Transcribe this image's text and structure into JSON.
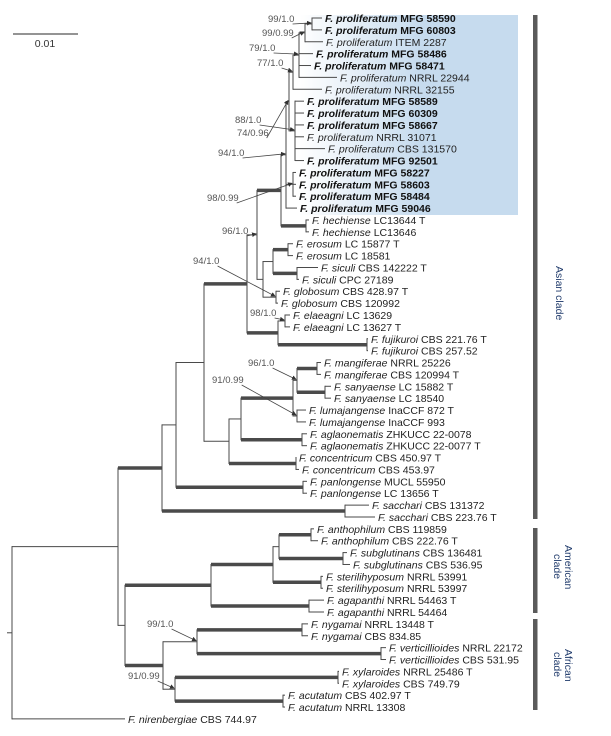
{
  "scale_bar": {
    "label": "0.01"
  },
  "colors": {
    "highlight_start": "#ffffff",
    "highlight_end": "#c6dbee",
    "branch": "#4a4a4a",
    "clade_bar": "#5a5a5a",
    "clade_text": "#1f3a6b"
  },
  "tips": [
    {
      "species": "F. proliferatum",
      "strain": "MFG 58590",
      "bold": true
    },
    {
      "species": "F. proliferatum",
      "strain": "MFG 60803",
      "bold": true
    },
    {
      "species": "F. proliferatum",
      "strain": "ITEM 2287",
      "bold": false
    },
    {
      "species": "F. proliferatum",
      "strain": "MFG 58486",
      "bold": true
    },
    {
      "species": "F. proliferatum",
      "strain": "MFG 58471",
      "bold": true
    },
    {
      "species": "F. proliferatum",
      "strain": "NRRL 22944",
      "bold": false
    },
    {
      "species": "F. proliferatum",
      "strain": "NRRL 32155",
      "bold": false
    },
    {
      "species": "F. proliferatum",
      "strain": "MFG 58589",
      "bold": true
    },
    {
      "species": "F. proliferatum",
      "strain": "MFG 60309",
      "bold": true
    },
    {
      "species": "F. proliferatum",
      "strain": "MFG 58667",
      "bold": true
    },
    {
      "species": "F. proliferatum",
      "strain": "NRRL 31071",
      "bold": false
    },
    {
      "species": "F. proliferatum",
      "strain": "CBS 131570",
      "bold": false
    },
    {
      "species": "F. proliferatum",
      "strain": "MFG 92501",
      "bold": true
    },
    {
      "species": "F. proliferatum",
      "strain": "MFG 58227",
      "bold": true
    },
    {
      "species": "F. proliferatum",
      "strain": "MFG 58603",
      "bold": true
    },
    {
      "species": "F. proliferatum",
      "strain": "MFG 58484",
      "bold": true
    },
    {
      "species": "F. proliferatum",
      "strain": "MFG 59046",
      "bold": true
    },
    {
      "species": "F. hechiense",
      "strain": "LC13644 T",
      "bold": false
    },
    {
      "species": "F. hechiense",
      "strain": "LC13646",
      "bold": false
    },
    {
      "species": "F. erosum",
      "strain": "LC 15877 T",
      "bold": false
    },
    {
      "species": "F. erosum",
      "strain": "LC 18581",
      "bold": false
    },
    {
      "species": "F. siculi",
      "strain": "CBS 142222 T",
      "bold": false
    },
    {
      "species": "F. siculi",
      "strain": "CPC 27189",
      "bold": false
    },
    {
      "species": "F. globosum",
      "strain": "CBS 428.97 T",
      "bold": false
    },
    {
      "species": "F. globosum",
      "strain": "CBS 120992",
      "bold": false
    },
    {
      "species": "F. elaeagni",
      "strain": "LC 13629",
      "bold": false
    },
    {
      "species": "F. elaeagni",
      "strain": "LC 13627 T",
      "bold": false
    },
    {
      "species": "F. fujikuroi",
      "strain": "CBS 221.76 T",
      "bold": false
    },
    {
      "species": "F. fujikuroi",
      "strain": "CBS 257.52",
      "bold": false
    },
    {
      "species": "F. mangiferae",
      "strain": "NRRL 25226",
      "bold": false
    },
    {
      "species": "F. mangiferae",
      "strain": "CBS 120994 T",
      "bold": false
    },
    {
      "species": "F. sanyaense",
      "strain": "LC 15882 T",
      "bold": false
    },
    {
      "species": "F. sanyaense",
      "strain": "LC 18540",
      "bold": false
    },
    {
      "species": "F. lumajangense",
      "strain": "InaCCF 872 T",
      "bold": false
    },
    {
      "species": "F. lumajangense",
      "strain": "InaCCF 993",
      "bold": false
    },
    {
      "species": "F. aglaonematis",
      "strain": "ZHKUCC 22-0078",
      "bold": false
    },
    {
      "species": "F. aglaonematis",
      "strain": "ZHKUCC 22-0077 T",
      "bold": false
    },
    {
      "species": "F. concentricum",
      "strain": "CBS 450.97 T",
      "bold": false
    },
    {
      "species": "F. concentricum",
      "strain": "CBS 453.97",
      "bold": false
    },
    {
      "species": "F. panlongense",
      "strain": "MUCL 55950",
      "bold": false
    },
    {
      "species": "F. panlongense",
      "strain": "LC 13656 T",
      "bold": false
    },
    {
      "species": "F. sacchari",
      "strain": "CBS 131372",
      "bold": false
    },
    {
      "species": "F. sacchari",
      "strain": "CBS 223.76 T",
      "bold": false
    },
    {
      "species": "F. anthophilum",
      "strain": "CBS 119859",
      "bold": false
    },
    {
      "species": "F. anthophilum",
      "strain": "CBS 222.76 T",
      "bold": false
    },
    {
      "species": "F. subglutinans",
      "strain": "CBS 136481",
      "bold": false
    },
    {
      "species": "F. subglutinans",
      "strain": "CBS 536.95",
      "bold": false
    },
    {
      "species": "F. sterilihyposum",
      "strain": "NRRL 53991",
      "bold": false
    },
    {
      "species": "F. sterilihyposum",
      "strain": "NRRL 53997",
      "bold": false
    },
    {
      "species": "F. agapanthi",
      "strain": "NRRL 54463 T",
      "bold": false
    },
    {
      "species": "F. agapanthi",
      "strain": "NRRL 54464",
      "bold": false
    },
    {
      "species": "F. nygamai",
      "strain": "NRRL 13448 T",
      "bold": false
    },
    {
      "species": "F. nygamai",
      "strain": "CBS 834.85",
      "bold": false
    },
    {
      "species": "F. verticillioides",
      "strain": "NRRL 22172",
      "bold": false
    },
    {
      "species": "F. verticillioides",
      "strain": "CBS 531.95",
      "bold": false
    },
    {
      "species": "F. xylaroides",
      "strain": "NRRL 25486 T",
      "bold": false
    },
    {
      "species": "F. xylaroides",
      "strain": "CBS 749.79",
      "bold": false
    },
    {
      "species": "F. acutatum",
      "strain": "CBS 402.97 T",
      "bold": false
    },
    {
      "species": "F. acutatum",
      "strain": "NRRL 13308",
      "bold": false
    },
    {
      "species": "F. nirenbergiae",
      "strain": "CBS 744.97",
      "bold": false
    }
  ],
  "supports": [
    "99/1.0",
    "99/0.99",
    "79/1.0",
    "77/1.0",
    "88/1.0",
    "74/0.96",
    "94/1.0",
    "98/0.99",
    "96/1.0",
    "94/1.0",
    "98/1.0",
    "96/1.0",
    "91/0.99",
    "99/1.0",
    "91/0.99"
  ],
  "clades": [
    {
      "name": "Asian clade"
    },
    {
      "name": "American clade"
    },
    {
      "name": "African clade"
    }
  ]
}
